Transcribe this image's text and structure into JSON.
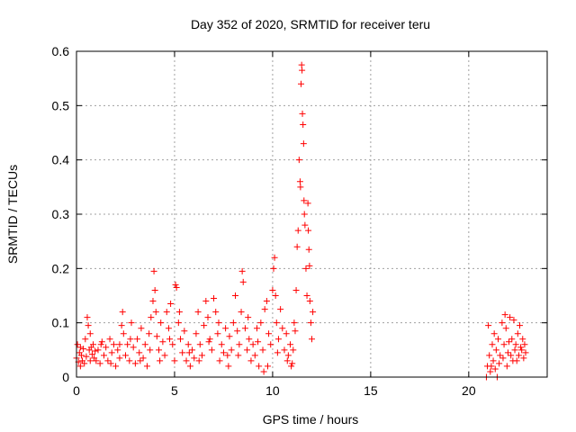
{
  "chart_data": {
    "type": "scatter",
    "title": "Day 352 of 2020, SRMTID for receiver teru",
    "xlabel": "GPS time / hours",
    "ylabel": "SRMTID / TECUs",
    "xlim": [
      0,
      24
    ],
    "ylim": [
      0,
      0.6
    ],
    "xticks": [
      0,
      5,
      10,
      15,
      20
    ],
    "xtick_labels": [
      "0",
      "5",
      "10",
      "15",
      "20"
    ],
    "yticks": [
      0,
      0.1,
      0.2,
      0.3,
      0.4,
      0.5,
      0.6
    ],
    "ytick_labels": [
      "0",
      "0.1",
      "0.2",
      "0.3",
      "0.4",
      "0.5",
      "0.6"
    ],
    "grid": true,
    "marker": "+",
    "series": [
      {
        "name": "SRMTID",
        "color": "#ff0000",
        "points": [
          [
            0.0,
            0.035
          ],
          [
            0.05,
            0.06
          ],
          [
            0.1,
            0.028
          ],
          [
            0.15,
            0.045
          ],
          [
            0.2,
            0.02
          ],
          [
            0.25,
            0.04
          ],
          [
            0.3,
            0.03
          ],
          [
            0.35,
            0.052
          ],
          [
            0.4,
            0.025
          ],
          [
            0.45,
            0.07
          ],
          [
            0.5,
            0.038
          ],
          [
            0.55,
            0.11
          ],
          [
            0.6,
            0.095
          ],
          [
            0.65,
            0.05
          ],
          [
            0.7,
            0.03
          ],
          [
            0.75,
            0.055
          ],
          [
            0.8,
            0.042
          ],
          [
            0.85,
            0.06
          ],
          [
            0.9,
            0.035
          ],
          [
            0.95,
            0.048
          ],
          [
            1.0,
            0.03
          ],
          [
            1.1,
            0.05
          ],
          [
            1.2,
            0.025
          ],
          [
            1.3,
            0.065
          ],
          [
            1.4,
            0.04
          ],
          [
            1.5,
            0.055
          ],
          [
            1.6,
            0.03
          ],
          [
            1.7,
            0.07
          ],
          [
            1.8,
            0.045
          ],
          [
            1.9,
            0.06
          ],
          [
            2.0,
            0.02
          ],
          [
            2.1,
            0.05
          ],
          [
            2.2,
            0.035
          ],
          [
            2.3,
            0.095
          ],
          [
            2.35,
            0.12
          ],
          [
            2.4,
            0.08
          ],
          [
            2.5,
            0.04
          ],
          [
            2.6,
            0.06
          ],
          [
            2.7,
            0.03
          ],
          [
            2.8,
            0.1
          ],
          [
            2.9,
            0.055
          ],
          [
            3.0,
            0.025
          ],
          [
            3.1,
            0.07
          ],
          [
            3.2,
            0.045
          ],
          [
            3.3,
            0.09
          ],
          [
            3.4,
            0.035
          ],
          [
            3.5,
            0.06
          ],
          [
            3.6,
            0.02
          ],
          [
            3.7,
            0.08
          ],
          [
            3.8,
            0.11
          ],
          [
            3.9,
            0.14
          ],
          [
            3.95,
            0.195
          ],
          [
            4.0,
            0.16
          ],
          [
            4.05,
            0.12
          ],
          [
            4.1,
            0.075
          ],
          [
            4.2,
            0.05
          ],
          [
            4.3,
            0.1
          ],
          [
            4.4,
            0.065
          ],
          [
            4.5,
            0.04
          ],
          [
            4.6,
            0.12
          ],
          [
            4.7,
            0.09
          ],
          [
            4.8,
            0.135
          ],
          [
            4.9,
            0.06
          ],
          [
            5.0,
            0.03
          ],
          [
            5.05,
            0.17
          ],
          [
            5.1,
            0.165
          ],
          [
            5.2,
            0.1
          ],
          [
            5.3,
            0.07
          ],
          [
            5.4,
            0.045
          ],
          [
            5.5,
            0.085
          ],
          [
            5.6,
            0.03
          ],
          [
            5.7,
            0.06
          ],
          [
            5.8,
            0.02
          ],
          [
            5.9,
            0.05
          ],
          [
            6.0,
            0.035
          ],
          [
            6.1,
            0.08
          ],
          [
            6.2,
            0.12
          ],
          [
            6.3,
            0.06
          ],
          [
            6.4,
            0.04
          ],
          [
            6.5,
            0.095
          ],
          [
            6.6,
            0.14
          ],
          [
            6.7,
            0.11
          ],
          [
            6.8,
            0.07
          ],
          [
            6.9,
            0.05
          ],
          [
            7.0,
            0.145
          ],
          [
            7.1,
            0.12
          ],
          [
            7.2,
            0.08
          ],
          [
            7.3,
            0.03
          ],
          [
            7.4,
            0.06
          ],
          [
            7.5,
            0.045
          ],
          [
            7.6,
            0.09
          ],
          [
            7.7,
            0.04
          ],
          [
            7.8,
            0.075
          ],
          [
            7.9,
            0.05
          ],
          [
            8.0,
            0.1
          ],
          [
            8.1,
            0.15
          ],
          [
            8.2,
            0.085
          ],
          [
            8.3,
            0.06
          ],
          [
            8.4,
            0.12
          ],
          [
            8.45,
            0.195
          ],
          [
            8.5,
            0.175
          ],
          [
            8.6,
            0.09
          ],
          [
            8.7,
            0.05
          ],
          [
            8.8,
            0.07
          ],
          [
            8.9,
            0.03
          ],
          [
            9.0,
            0.06
          ],
          [
            9.1,
            0.04
          ],
          [
            9.2,
            0.09
          ],
          [
            9.3,
            0.02
          ],
          [
            9.4,
            0.1
          ],
          [
            9.5,
            0.05
          ],
          [
            9.6,
            0.125
          ],
          [
            9.7,
            0.14
          ],
          [
            9.8,
            0.08
          ],
          [
            9.9,
            0.06
          ],
          [
            10.0,
            0.16
          ],
          [
            10.05,
            0.2
          ],
          [
            10.1,
            0.22
          ],
          [
            10.15,
            0.15
          ],
          [
            10.2,
            0.1
          ],
          [
            10.3,
            0.07
          ],
          [
            10.4,
            0.125
          ],
          [
            10.5,
            0.09
          ],
          [
            10.6,
            0.05
          ],
          [
            10.7,
            0.08
          ],
          [
            10.8,
            0.04
          ],
          [
            10.9,
            0.06
          ],
          [
            11.0,
            0.025
          ],
          [
            11.1,
            0.1
          ],
          [
            11.2,
            0.16
          ],
          [
            11.25,
            0.24
          ],
          [
            11.3,
            0.27
          ],
          [
            11.35,
            0.4
          ],
          [
            11.4,
            0.36
          ],
          [
            11.42,
            0.35
          ],
          [
            11.45,
            0.54
          ],
          [
            11.48,
            0.575
          ],
          [
            11.5,
            0.565
          ],
          [
            11.52,
            0.485
          ],
          [
            11.55,
            0.465
          ],
          [
            11.58,
            0.43
          ],
          [
            11.6,
            0.325
          ],
          [
            11.62,
            0.3
          ],
          [
            11.65,
            0.28
          ],
          [
            11.7,
            0.2
          ],
          [
            11.75,
            0.15
          ],
          [
            11.8,
            0.32
          ],
          [
            11.82,
            0.27
          ],
          [
            11.85,
            0.235
          ],
          [
            11.88,
            0.205
          ],
          [
            11.9,
            0.14
          ],
          [
            11.95,
            0.1
          ],
          [
            12.0,
            0.07
          ],
          [
            12.05,
            0.12
          ],
          [
            0.2,
            0.055
          ],
          [
            0.7,
            0.08
          ],
          [
            1.25,
            0.06
          ],
          [
            1.75,
            0.025
          ],
          [
            2.2,
            0.06
          ],
          [
            2.75,
            0.07
          ],
          [
            3.25,
            0.03
          ],
          [
            3.75,
            0.05
          ],
          [
            4.25,
            0.03
          ],
          [
            4.75,
            0.07
          ],
          [
            5.25,
            0.12
          ],
          [
            5.75,
            0.045
          ],
          [
            6.25,
            0.03
          ],
          [
            6.75,
            0.065
          ],
          [
            7.25,
            0.1
          ],
          [
            7.75,
            0.02
          ],
          [
            8.25,
            0.04
          ],
          [
            8.75,
            0.11
          ],
          [
            9.25,
            0.065
          ],
          [
            9.75,
            0.02
          ],
          [
            10.25,
            0.045
          ],
          [
            10.75,
            0.03
          ],
          [
            11.05,
            0.05
          ],
          [
            11.15,
            0.085
          ],
          [
            10.95,
            0.02
          ],
          [
            9.55,
            0.01
          ],
          [
            20.9,
            0.0
          ],
          [
            20.95,
            0.02
          ],
          [
            21.0,
            0.095
          ],
          [
            21.05,
            0.04
          ],
          [
            21.1,
            0.01
          ],
          [
            21.2,
            0.06
          ],
          [
            21.25,
            0.03
          ],
          [
            21.3,
            0.08
          ],
          [
            21.4,
            0.05
          ],
          [
            21.45,
            0.0
          ],
          [
            21.5,
            0.07
          ],
          [
            21.6,
            0.04
          ],
          [
            21.7,
            0.1
          ],
          [
            21.8,
            0.06
          ],
          [
            21.85,
            0.115
          ],
          [
            21.9,
            0.09
          ],
          [
            22.0,
            0.045
          ],
          [
            22.1,
            0.11
          ],
          [
            22.2,
            0.07
          ],
          [
            22.25,
            0.03
          ],
          [
            22.3,
            0.105
          ],
          [
            22.4,
            0.06
          ],
          [
            22.5,
            0.08
          ],
          [
            22.55,
            0.04
          ],
          [
            22.6,
            0.095
          ],
          [
            22.7,
            0.05
          ],
          [
            22.75,
            0.07
          ],
          [
            22.8,
            0.035
          ],
          [
            22.85,
            0.06
          ],
          [
            22.9,
            0.045
          ],
          [
            21.15,
            0.02
          ],
          [
            21.35,
            0.015
          ],
          [
            21.55,
            0.025
          ],
          [
            21.75,
            0.035
          ],
          [
            21.95,
            0.02
          ],
          [
            22.15,
            0.04
          ],
          [
            22.35,
            0.05
          ],
          [
            22.45,
            0.03
          ],
          [
            22.65,
            0.055
          ],
          [
            22.05,
            0.065
          ]
        ]
      }
    ]
  }
}
